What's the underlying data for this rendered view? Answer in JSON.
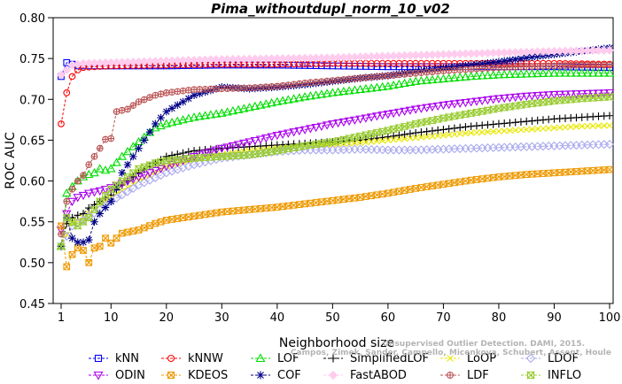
{
  "chart_data": {
    "type": "line",
    "title": "Pima_withoutdupl_norm_10_v02",
    "xlabel": "Neighborhood size",
    "ylabel": "ROC AUC",
    "xlim": [
      1,
      100
    ],
    "ylim": [
      0.45,
      0.8
    ],
    "xticks": [
      1,
      10,
      20,
      30,
      40,
      50,
      60,
      70,
      80,
      90,
      100
    ],
    "yticks": [
      0.45,
      0.5,
      0.55,
      0.6,
      0.65,
      0.7,
      0.75,
      0.8
    ],
    "ytick_labels": [
      "0.45",
      "0.50",
      "0.55",
      "0.60",
      "0.65",
      "0.70",
      "0.75",
      "0.80"
    ],
    "grid": false,
    "legend_position": "bottom",
    "series": [
      {
        "name": "kNN",
        "color": "#0000ff",
        "marker": "square",
        "points": [
          [
            1,
            0.728
          ],
          [
            2,
            0.745
          ],
          [
            3,
            0.743
          ],
          [
            4,
            0.741
          ],
          [
            5,
            0.741
          ],
          [
            10,
            0.741
          ],
          [
            20,
            0.741
          ],
          [
            30,
            0.742
          ],
          [
            40,
            0.742
          ],
          [
            50,
            0.741
          ],
          [
            60,
            0.74
          ],
          [
            70,
            0.74
          ],
          [
            80,
            0.74
          ],
          [
            90,
            0.74
          ],
          [
            100,
            0.739
          ]
        ]
      },
      {
        "name": "kNNW",
        "color": "#ff0000",
        "marker": "circle",
        "points": [
          [
            1,
            0.67
          ],
          [
            2,
            0.708
          ],
          [
            3,
            0.728
          ],
          [
            4,
            0.736
          ],
          [
            5,
            0.739
          ],
          [
            7,
            0.74
          ],
          [
            10,
            0.741
          ],
          [
            20,
            0.742
          ],
          [
            30,
            0.743
          ],
          [
            40,
            0.743
          ],
          [
            50,
            0.744
          ],
          [
            60,
            0.744
          ],
          [
            70,
            0.744
          ],
          [
            80,
            0.744
          ],
          [
            90,
            0.744
          ],
          [
            100,
            0.743
          ]
        ]
      },
      {
        "name": "LOF",
        "color": "#00dd00",
        "marker": "triangle-up",
        "points": [
          [
            1,
            0.52
          ],
          [
            2,
            0.585
          ],
          [
            3,
            0.593
          ],
          [
            4,
            0.6
          ],
          [
            5,
            0.605
          ],
          [
            6,
            0.608
          ],
          [
            7,
            0.61
          ],
          [
            8,
            0.615
          ],
          [
            9,
            0.613
          ],
          [
            10,
            0.615
          ],
          [
            12,
            0.63
          ],
          [
            15,
            0.648
          ],
          [
            18,
            0.665
          ],
          [
            20,
            0.67
          ],
          [
            25,
            0.678
          ],
          [
            30,
            0.683
          ],
          [
            35,
            0.69
          ],
          [
            40,
            0.697
          ],
          [
            45,
            0.703
          ],
          [
            50,
            0.708
          ],
          [
            55,
            0.712
          ],
          [
            60,
            0.716
          ],
          [
            65,
            0.722
          ],
          [
            70,
            0.725
          ],
          [
            75,
            0.728
          ],
          [
            80,
            0.73
          ],
          [
            85,
            0.731
          ],
          [
            90,
            0.732
          ],
          [
            95,
            0.732
          ],
          [
            100,
            0.732
          ]
        ]
      },
      {
        "name": "SimplifiedLOF",
        "color": "#000000",
        "marker": "plus",
        "points": [
          [
            1,
            0.52
          ],
          [
            2,
            0.548
          ],
          [
            3,
            0.555
          ],
          [
            4,
            0.558
          ],
          [
            5,
            0.56
          ],
          [
            6,
            0.567
          ],
          [
            8,
            0.575
          ],
          [
            10,
            0.583
          ],
          [
            12,
            0.595
          ],
          [
            15,
            0.61
          ],
          [
            18,
            0.622
          ],
          [
            20,
            0.63
          ],
          [
            25,
            0.637
          ],
          [
            30,
            0.64
          ],
          [
            35,
            0.642
          ],
          [
            40,
            0.644
          ],
          [
            45,
            0.646
          ],
          [
            50,
            0.648
          ],
          [
            55,
            0.65
          ],
          [
            60,
            0.654
          ],
          [
            65,
            0.659
          ],
          [
            70,
            0.663
          ],
          [
            75,
            0.667
          ],
          [
            80,
            0.67
          ],
          [
            85,
            0.673
          ],
          [
            90,
            0.676
          ],
          [
            95,
            0.678
          ],
          [
            100,
            0.68
          ]
        ]
      },
      {
        "name": "LoOP",
        "color": "#e8e800",
        "marker": "x",
        "points": [
          [
            1,
            0.52
          ],
          [
            3,
            0.548
          ],
          [
            5,
            0.555
          ],
          [
            8,
            0.57
          ],
          [
            10,
            0.58
          ],
          [
            15,
            0.6
          ],
          [
            20,
            0.618
          ],
          [
            25,
            0.627
          ],
          [
            30,
            0.632
          ],
          [
            35,
            0.637
          ],
          [
            40,
            0.64
          ],
          [
            45,
            0.643
          ],
          [
            50,
            0.645
          ],
          [
            55,
            0.647
          ],
          [
            60,
            0.65
          ],
          [
            65,
            0.653
          ],
          [
            70,
            0.656
          ],
          [
            75,
            0.659
          ],
          [
            80,
            0.661
          ],
          [
            85,
            0.663
          ],
          [
            90,
            0.665
          ],
          [
            95,
            0.667
          ],
          [
            100,
            0.668
          ]
        ]
      },
      {
        "name": "LDOF",
        "color": "#aaaaee",
        "marker": "diamond",
        "points": [
          [
            1,
            0.52
          ],
          [
            3,
            0.545
          ],
          [
            5,
            0.552
          ],
          [
            8,
            0.565
          ],
          [
            10,
            0.575
          ],
          [
            15,
            0.595
          ],
          [
            20,
            0.61
          ],
          [
            25,
            0.62
          ],
          [
            30,
            0.628
          ],
          [
            35,
            0.632
          ],
          [
            40,
            0.636
          ],
          [
            45,
            0.638
          ],
          [
            50,
            0.638
          ],
          [
            55,
            0.639
          ],
          [
            60,
            0.638
          ],
          [
            65,
            0.638
          ],
          [
            70,
            0.639
          ],
          [
            75,
            0.64
          ],
          [
            80,
            0.641
          ],
          [
            85,
            0.642
          ],
          [
            90,
            0.643
          ],
          [
            95,
            0.644
          ],
          [
            100,
            0.645
          ]
        ]
      },
      {
        "name": "ODIN",
        "color": "#aa00ee",
        "marker": "triangle-down",
        "points": [
          [
            1,
            0.54
          ],
          [
            2,
            0.56
          ],
          [
            3,
            0.575
          ],
          [
            4,
            0.58
          ],
          [
            6,
            0.585
          ],
          [
            8,
            0.588
          ],
          [
            10,
            0.592
          ],
          [
            15,
            0.605
          ],
          [
            20,
            0.618
          ],
          [
            25,
            0.63
          ],
          [
            30,
            0.64
          ],
          [
            35,
            0.648
          ],
          [
            40,
            0.656
          ],
          [
            45,
            0.663
          ],
          [
            50,
            0.67
          ],
          [
            55,
            0.676
          ],
          [
            60,
            0.682
          ],
          [
            65,
            0.688
          ],
          [
            70,
            0.693
          ],
          [
            75,
            0.697
          ],
          [
            80,
            0.701
          ],
          [
            85,
            0.704
          ],
          [
            90,
            0.706
          ],
          [
            95,
            0.707
          ],
          [
            100,
            0.708
          ]
        ]
      },
      {
        "name": "KDEOS",
        "color": "#ee9900",
        "marker": "square-cross",
        "points": [
          [
            1,
            0.545
          ],
          [
            2,
            0.495
          ],
          [
            3,
            0.51
          ],
          [
            4,
            0.518
          ],
          [
            5,
            0.515
          ],
          [
            6,
            0.5
          ],
          [
            7,
            0.518
          ],
          [
            8,
            0.52
          ],
          [
            9,
            0.53
          ],
          [
            10,
            0.524
          ],
          [
            12,
            0.536
          ],
          [
            15,
            0.54
          ],
          [
            18,
            0.548
          ],
          [
            20,
            0.552
          ],
          [
            25,
            0.557
          ],
          [
            30,
            0.562
          ],
          [
            35,
            0.565
          ],
          [
            40,
            0.568
          ],
          [
            45,
            0.572
          ],
          [
            50,
            0.576
          ],
          [
            55,
            0.58
          ],
          [
            60,
            0.585
          ],
          [
            65,
            0.591
          ],
          [
            70,
            0.596
          ],
          [
            75,
            0.601
          ],
          [
            80,
            0.605
          ],
          [
            85,
            0.608
          ],
          [
            90,
            0.61
          ],
          [
            95,
            0.612
          ],
          [
            100,
            0.614
          ]
        ]
      },
      {
        "name": "COF",
        "color": "#000088",
        "marker": "asterisk",
        "points": [
          [
            1,
            0.52
          ],
          [
            2,
            0.555
          ],
          [
            3,
            0.53
          ],
          [
            4,
            0.525
          ],
          [
            5,
            0.525
          ],
          [
            6,
            0.528
          ],
          [
            7,
            0.55
          ],
          [
            8,
            0.56
          ],
          [
            10,
            0.575
          ],
          [
            12,
            0.61
          ],
          [
            15,
            0.64
          ],
          [
            18,
            0.67
          ],
          [
            20,
            0.685
          ],
          [
            25,
            0.705
          ],
          [
            30,
            0.715
          ],
          [
            35,
            0.713
          ],
          [
            40,
            0.715
          ],
          [
            45,
            0.718
          ],
          [
            50,
            0.722
          ],
          [
            55,
            0.726
          ],
          [
            60,
            0.729
          ],
          [
            65,
            0.734
          ],
          [
            70,
            0.738
          ],
          [
            75,
            0.742
          ],
          [
            80,
            0.746
          ],
          [
            85,
            0.751
          ],
          [
            90,
            0.755
          ],
          [
            95,
            0.759
          ],
          [
            100,
            0.763
          ]
        ]
      },
      {
        "name": "FastABOD",
        "color": "#ffccee",
        "marker": "diamond-filled",
        "points": [
          [
            1,
            0.73
          ],
          [
            3,
            0.742
          ],
          [
            5,
            0.744
          ],
          [
            10,
            0.745
          ],
          [
            20,
            0.747
          ],
          [
            30,
            0.749
          ],
          [
            40,
            0.75
          ],
          [
            50,
            0.751
          ],
          [
            60,
            0.753
          ],
          [
            70,
            0.755
          ],
          [
            80,
            0.757
          ],
          [
            90,
            0.759
          ],
          [
            100,
            0.76
          ]
        ]
      },
      {
        "name": "LDF",
        "color": "#bb5555",
        "marker": "circle-plus",
        "points": [
          [
            1,
            0.535
          ],
          [
            2,
            0.575
          ],
          [
            3,
            0.59
          ],
          [
            4,
            0.6
          ],
          [
            5,
            0.607
          ],
          [
            6,
            0.62
          ],
          [
            7,
            0.63
          ],
          [
            8,
            0.64
          ],
          [
            9,
            0.651
          ],
          [
            10,
            0.652
          ],
          [
            11,
            0.685
          ],
          [
            13,
            0.688
          ],
          [
            15,
            0.697
          ],
          [
            18,
            0.705
          ],
          [
            20,
            0.708
          ],
          [
            25,
            0.712
          ],
          [
            30,
            0.713
          ],
          [
            35,
            0.714
          ],
          [
            40,
            0.716
          ],
          [
            45,
            0.72
          ],
          [
            50,
            0.723
          ],
          [
            55,
            0.726
          ],
          [
            60,
            0.729
          ],
          [
            65,
            0.732
          ],
          [
            70,
            0.735
          ],
          [
            75,
            0.737
          ],
          [
            80,
            0.739
          ],
          [
            85,
            0.74
          ],
          [
            90,
            0.741
          ],
          [
            95,
            0.742
          ],
          [
            100,
            0.742
          ]
        ]
      },
      {
        "name": "INFLO",
        "color": "#99cc33",
        "marker": "hourglass",
        "points": [
          [
            1,
            0.52
          ],
          [
            2,
            0.555
          ],
          [
            3,
            0.55
          ],
          [
            4,
            0.545
          ],
          [
            6,
            0.555
          ],
          [
            8,
            0.575
          ],
          [
            10,
            0.59
          ],
          [
            12,
            0.6
          ],
          [
            15,
            0.615
          ],
          [
            18,
            0.622
          ],
          [
            20,
            0.625
          ],
          [
            25,
            0.628
          ],
          [
            30,
            0.63
          ],
          [
            35,
            0.632
          ],
          [
            40,
            0.637
          ],
          [
            45,
            0.643
          ],
          [
            50,
            0.648
          ],
          [
            55,
            0.655
          ],
          [
            60,
            0.662
          ],
          [
            65,
            0.67
          ],
          [
            70,
            0.677
          ],
          [
            75,
            0.683
          ],
          [
            80,
            0.689
          ],
          [
            85,
            0.694
          ],
          [
            90,
            0.698
          ],
          [
            95,
            0.701
          ],
          [
            100,
            0.703
          ]
        ]
      }
    ],
    "legend_rows": [
      [
        "kNN",
        "kNNW",
        "LOF",
        "SimplifiedLOF",
        "LoOP",
        "LDOF"
      ],
      [
        "ODIN",
        "KDEOS",
        "COF",
        "FastABOD",
        "LDF",
        "INFLO"
      ]
    ]
  },
  "watermark": {
    "line1": "Unsupervised Outlier Detection. DAMI, 2015.",
    "line2": "Campos, Zimek, Sander, Campello, Micenkova, Schubert, Assent, Houle"
  }
}
